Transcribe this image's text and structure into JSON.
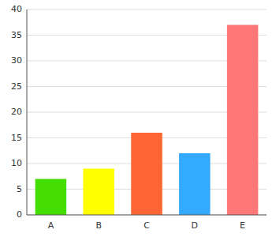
{
  "chart_data": {
    "type": "bar",
    "categories": [
      "A",
      "B",
      "C",
      "D",
      "E"
    ],
    "values": [
      7,
      9,
      16,
      12,
      37
    ],
    "colors": [
      "#44dd00",
      "#ffff00",
      "#ff6633",
      "#33aaff",
      "#ff7777"
    ],
    "ylim": [
      0,
      40
    ],
    "yticks": [
      0,
      5,
      10,
      15,
      20,
      25,
      30,
      35,
      40
    ],
    "grid": true
  }
}
